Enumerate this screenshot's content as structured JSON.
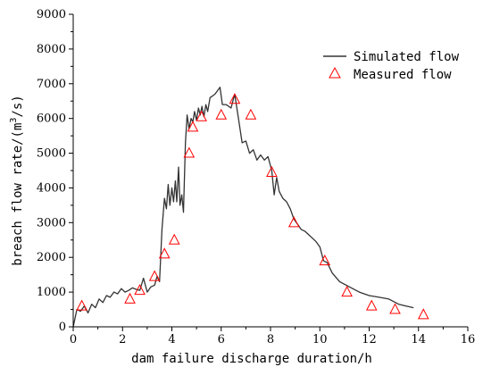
{
  "chart_data": {
    "type": "line",
    "xlabel": "dam failure discharge duration/h",
    "ylabel_main": "breach flow rate/(m",
    "ylabel_sup": "3",
    "ylabel_end": "/s)",
    "xlim": [
      0,
      16
    ],
    "ylim": [
      0,
      9000
    ],
    "xticks": [
      0,
      2,
      4,
      6,
      8,
      10,
      12,
      14,
      16
    ],
    "yticks": [
      0,
      1000,
      2000,
      3000,
      4000,
      5000,
      6000,
      7000,
      8000,
      9000
    ],
    "grid": false,
    "legend_position": "top-right",
    "series": [
      {
        "name": "Simulated flow",
        "style": "line",
        "color": "#333333",
        "x": [
          0.0,
          0.15,
          0.3,
          0.45,
          0.6,
          0.75,
          0.9,
          1.05,
          1.2,
          1.35,
          1.5,
          1.65,
          1.8,
          1.95,
          2.1,
          2.25,
          2.4,
          2.55,
          2.7,
          2.85,
          3.0,
          3.15,
          3.3,
          3.4,
          3.5,
          3.6,
          3.7,
          3.78,
          3.85,
          3.92,
          4.0,
          4.07,
          4.14,
          4.2,
          4.27,
          4.33,
          4.4,
          4.47,
          4.55,
          4.62,
          4.7,
          4.78,
          4.85,
          4.92,
          5.0,
          5.08,
          5.15,
          5.22,
          5.3,
          5.38,
          5.45,
          5.55,
          5.65,
          5.75,
          5.85,
          5.95,
          6.05,
          6.2,
          6.4,
          6.55,
          6.7,
          6.85,
          7.0,
          7.15,
          7.3,
          7.45,
          7.6,
          7.75,
          7.9,
          8.05,
          8.15,
          8.25,
          8.35,
          8.5,
          8.65,
          8.8,
          8.95,
          9.1,
          9.25,
          9.4,
          9.55,
          9.7,
          9.85,
          10.0,
          10.15,
          10.3,
          10.5,
          10.8,
          11.2,
          11.6,
          12.0,
          12.4,
          12.8,
          13.2,
          13.5,
          13.8
        ],
        "y": [
          0,
          500,
          450,
          600,
          400,
          650,
          550,
          800,
          700,
          900,
          850,
          1000,
          950,
          1100,
          1000,
          1050,
          1120,
          1080,
          1050,
          1400,
          1000,
          1150,
          1200,
          1450,
          1300,
          2800,
          3700,
          3400,
          4100,
          3500,
          4000,
          3600,
          4200,
          3600,
          4600,
          3500,
          3800,
          3300,
          5300,
          6100,
          5700,
          6000,
          5900,
          6200,
          5950,
          6300,
          6100,
          6350,
          6050,
          6400,
          6200,
          6600,
          6650,
          6700,
          6800,
          6900,
          6400,
          6400,
          6300,
          6700,
          6000,
          5300,
          5350,
          5000,
          5100,
          4800,
          4950,
          4800,
          4900,
          4500,
          3800,
          4300,
          3900,
          3700,
          3600,
          3400,
          3100,
          2950,
          2800,
          2750,
          2650,
          2550,
          2450,
          2300,
          1900,
          1850,
          1550,
          1300,
          1150,
          1000,
          900,
          850,
          800,
          650,
          600,
          550
        ]
      },
      {
        "name": "Measured flow",
        "style": "triangle",
        "color": "#ff0000",
        "x": [
          0.35,
          2.3,
          2.7,
          3.3,
          3.7,
          4.1,
          4.7,
          4.85,
          5.2,
          6.0,
          6.55,
          7.2,
          8.05,
          8.95,
          10.2,
          11.1,
          12.1,
          13.05,
          14.2
        ],
        "y": [
          600,
          800,
          1050,
          1450,
          2100,
          2500,
          5000,
          5750,
          6050,
          6100,
          6550,
          6100,
          4450,
          3000,
          1900,
          1000,
          600,
          500,
          350
        ]
      }
    ]
  }
}
